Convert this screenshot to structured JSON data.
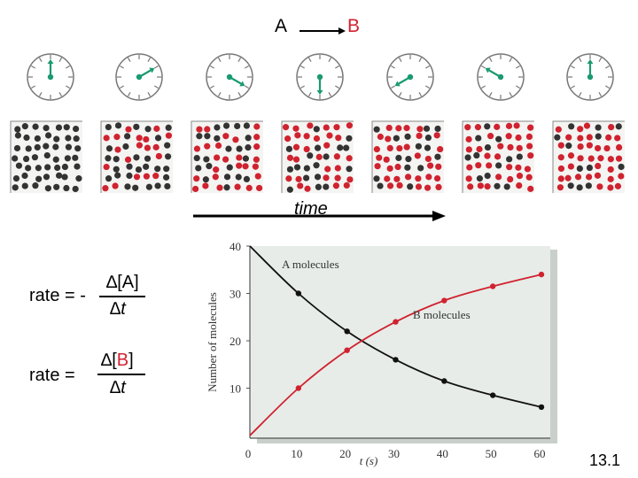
{
  "reaction": {
    "reactant": "A",
    "product": "B"
  },
  "timeline": {
    "label": "time",
    "clock_angles_deg": [
      0,
      60,
      120,
      180,
      240,
      300,
      360
    ]
  },
  "molecule_fraction_B": [
    0.0,
    0.25,
    0.45,
    0.6,
    0.72,
    0.8,
    0.85
  ],
  "equations": {
    "rate_a_prefix": "rate = -",
    "rate_b_prefix": "rate =",
    "delta_a_num": "∆[A]",
    "delta_b_num_open": "∆[",
    "delta_b_num_species": "B",
    "delta_b_num_close": "]",
    "delta_den": "∆t"
  },
  "chart_data": {
    "type": "line",
    "x": [
      0,
      10,
      20,
      30,
      40,
      50,
      60
    ],
    "series": [
      {
        "name": "A molecules",
        "values": [
          40,
          30,
          22,
          16,
          11.5,
          8.5,
          6
        ],
        "color": "#111111"
      },
      {
        "name": "B molecules",
        "values": [
          0,
          10,
          18,
          24,
          28.5,
          31.5,
          34
        ],
        "color": "#d0222f"
      }
    ],
    "xlabel": "t (s)",
    "ylabel": "Number of molecules",
    "xlim": [
      0,
      60
    ],
    "ylim": [
      0,
      40
    ],
    "x_ticks": [
      "0",
      "10",
      "20",
      "30",
      "40",
      "50",
      "60"
    ],
    "y_ticks": [
      "10",
      "20",
      "30",
      "40"
    ],
    "background": "#e7ece8"
  },
  "page_number": "13.1"
}
